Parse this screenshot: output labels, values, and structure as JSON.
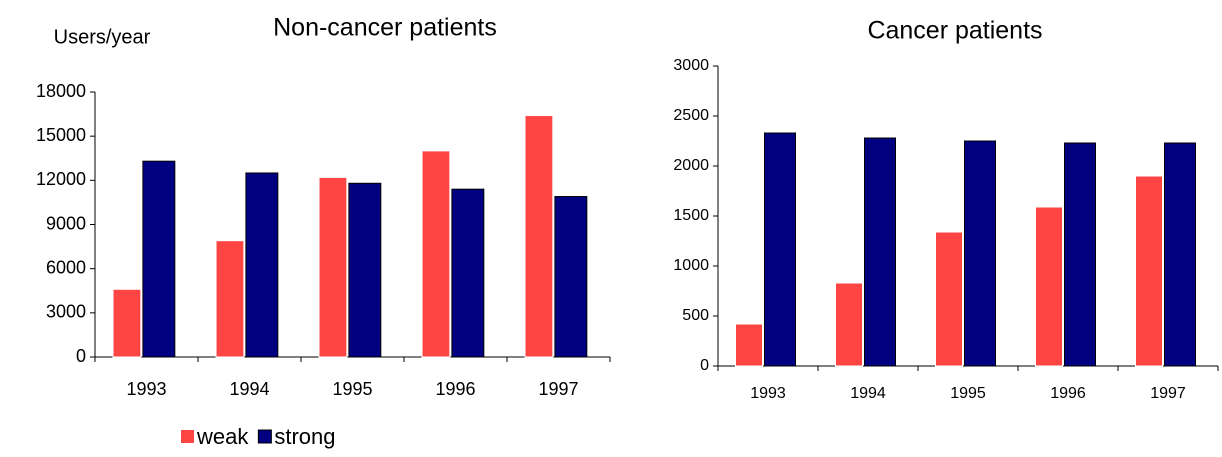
{
  "chart_data": [
    {
      "type": "bar",
      "title": "Non-cancer patients",
      "y_label": "Users/year",
      "categories": [
        "1993",
        "1994",
        "1995",
        "1996",
        "1997"
      ],
      "series": [
        {
          "name": "weak",
          "color": "#ff4444",
          "values": [
            4600,
            7900,
            12200,
            14000,
            16400
          ]
        },
        {
          "name": "strong",
          "color": "#000080",
          "values": [
            13300,
            12500,
            11800,
            11400,
            10900
          ]
        }
      ],
      "ylim": [
        0,
        18000
      ],
      "yticks": [
        0,
        3000,
        6000,
        9000,
        12000,
        15000,
        18000
      ],
      "grid": false,
      "legend": "bottom"
    },
    {
      "type": "bar",
      "title": "Cancer patients",
      "categories": [
        "1993",
        "1994",
        "1995",
        "1996",
        "1997"
      ],
      "series": [
        {
          "name": "weak",
          "color": "#ff4444",
          "values": [
            420,
            830,
            1340,
            1590,
            1900
          ]
        },
        {
          "name": "strong",
          "color": "#000080",
          "values": [
            2330,
            2280,
            2250,
            2230,
            2230
          ]
        }
      ],
      "ylim": [
        0,
        3000
      ],
      "yticks": [
        0,
        500,
        1000,
        1500,
        2000,
        2500,
        3000
      ],
      "grid": false
    }
  ]
}
